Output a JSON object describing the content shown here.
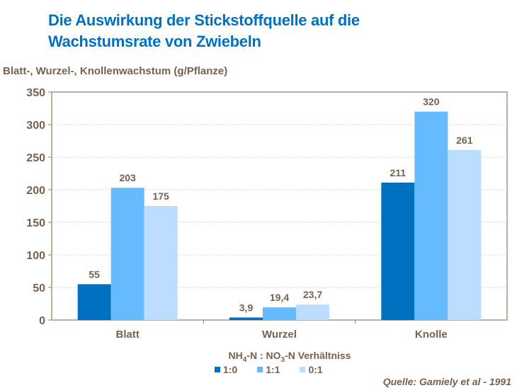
{
  "chart_data": {
    "type": "bar",
    "title": "Die Auswirkung der Stickstoffquelle auf die Wachstumsrate von Zwiebeln",
    "title_lines": [
      "Die Auswirkung der Stickstoffquelle auf die",
      "Wachstumsrate von Zwiebeln"
    ],
    "ylabel": "Blatt-, Wurzel-, Knollenwachstum (g/Pflanze)",
    "xlabel": "",
    "categories": [
      "Blatt",
      "Wurzel",
      "Knolle"
    ],
    "ylim": [
      0,
      350
    ],
    "yticks": [
      0,
      50,
      100,
      150,
      200,
      250,
      300,
      350
    ],
    "grid": true,
    "legend_title": {
      "prefix": "NH",
      "sub1": "4",
      "mid": "-N : NO",
      "sub2": "3",
      "suffix": "-N Verhältniss"
    },
    "legend_placement": "bottom",
    "series": [
      {
        "name": "1:0",
        "color": "#0070C0",
        "values": [
          55,
          3.9,
          211
        ],
        "labels": [
          "55",
          "3,9",
          "211"
        ]
      },
      {
        "name": "1:1",
        "color": "#66BBFF",
        "values": [
          203,
          19.4,
          320
        ],
        "labels": [
          "203",
          "19,4",
          "320"
        ]
      },
      {
        "name": "0:1",
        "color": "#BBDDFF",
        "values": [
          175,
          23.7,
          261
        ],
        "labels": [
          "175",
          "23,7",
          "261"
        ]
      }
    ],
    "source": "Quelle: Gamiely et al - 1991"
  }
}
